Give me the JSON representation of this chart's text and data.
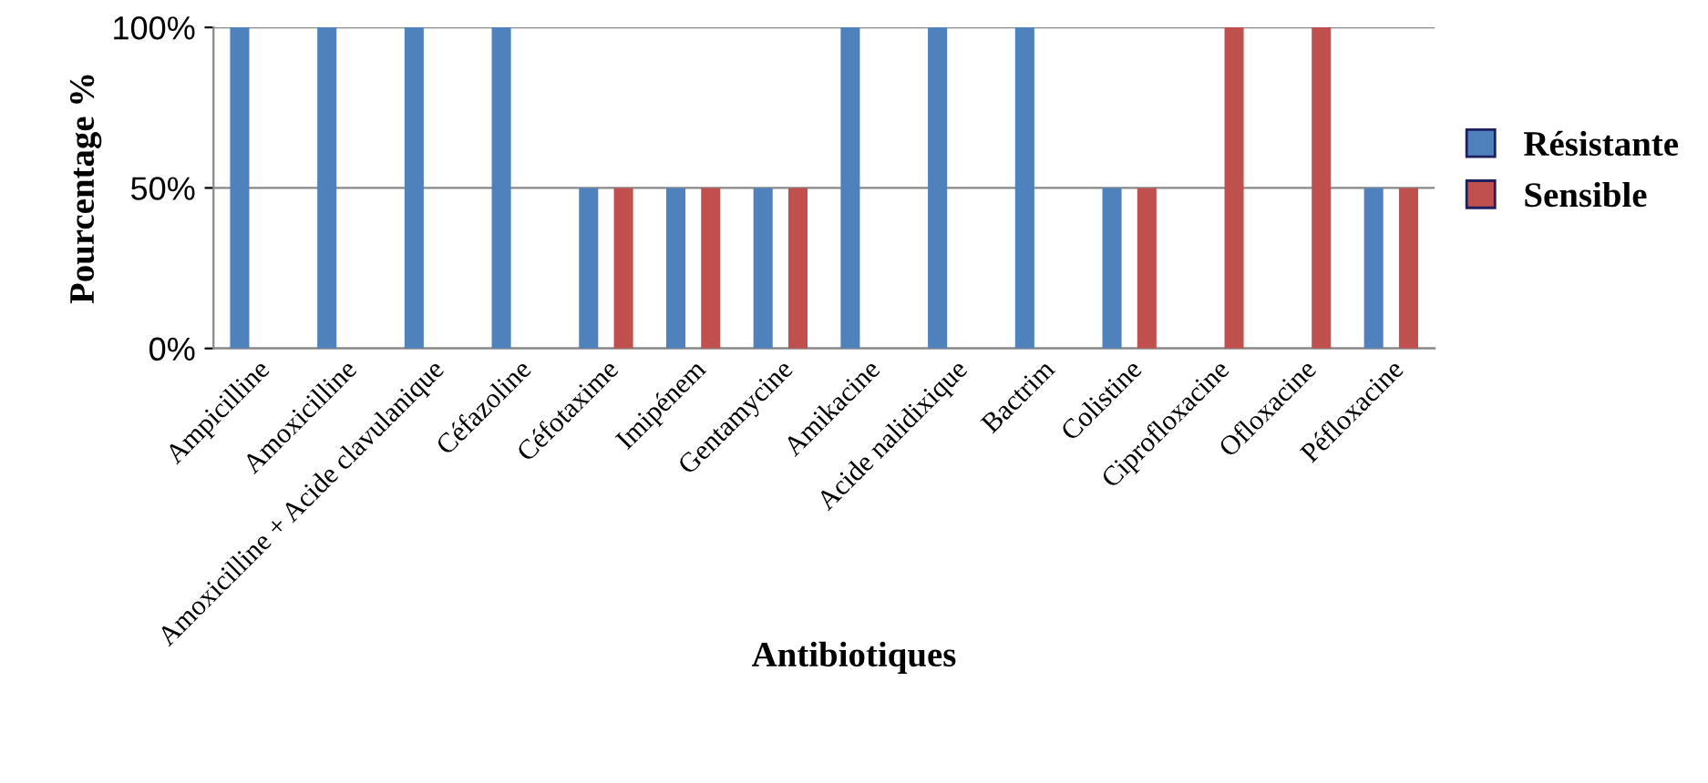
{
  "chart_data": {
    "type": "bar",
    "xlabel": "Antibiotiques",
    "ylabel": "Pourcentage %",
    "categories": [
      "Ampicilline",
      "Amoxicilline",
      "Amoxicilline + Acide clavulanique",
      "Céfazoline",
      "Céfotaxime",
      "Imipénem",
      "Gentamycine",
      "Amikacine",
      "Acide nalidixique",
      "Bactrim",
      "Colistine",
      "Ciprofloxacine",
      "Ofloxacine",
      "Péfloxacine"
    ],
    "series": [
      {
        "name": "Résistante",
        "color": "#4f81bd",
        "values": [
          100,
          100,
          100,
          100,
          50,
          50,
          50,
          100,
          100,
          100,
          50,
          0,
          0,
          50
        ]
      },
      {
        "name": "Sensible",
        "color": "#c0504d",
        "values": [
          0,
          0,
          0,
          0,
          50,
          50,
          50,
          0,
          0,
          0,
          50,
          100,
          100,
          50
        ]
      }
    ],
    "ylim": [
      0,
      100
    ],
    "yticks": [
      {
        "value": 0,
        "label": "0%"
      },
      {
        "value": 50,
        "label": "50%"
      },
      {
        "value": 100,
        "label": "100%"
      }
    ],
    "grid": "y",
    "legend": "right"
  }
}
